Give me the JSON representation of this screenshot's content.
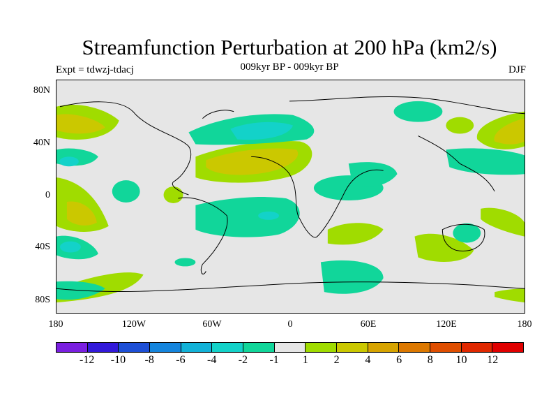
{
  "title": "Streamfunction Perturbation at 200 hPa (km2/s)",
  "subtitle": "009kyr BP - 009kyr BP",
  "left_label": "Expt = tdwzj-tdacj",
  "right_label": "DJF",
  "y_ticks": [
    "80N",
    "40N",
    "0",
    "40S",
    "80S"
  ],
  "x_ticks": [
    "180",
    "120W",
    "60W",
    "0",
    "60E",
    "120E",
    "180"
  ],
  "colorbar": {
    "colors": [
      "#7a1fe0",
      "#3219d9",
      "#1d4fd6",
      "#1585dd",
      "#12b2d8",
      "#13d2c9",
      "#11d69a",
      "#e6e6e6",
      "#a0dc00",
      "#cbc800",
      "#d7a400",
      "#dc7800",
      "#df4e00",
      "#e02800",
      "#e00000"
    ],
    "labels": [
      "-12",
      "-10",
      "-8",
      "-6",
      "-4",
      "-2",
      "-1",
      "1",
      "2",
      "4",
      "6",
      "8",
      "10",
      "12"
    ]
  }
}
